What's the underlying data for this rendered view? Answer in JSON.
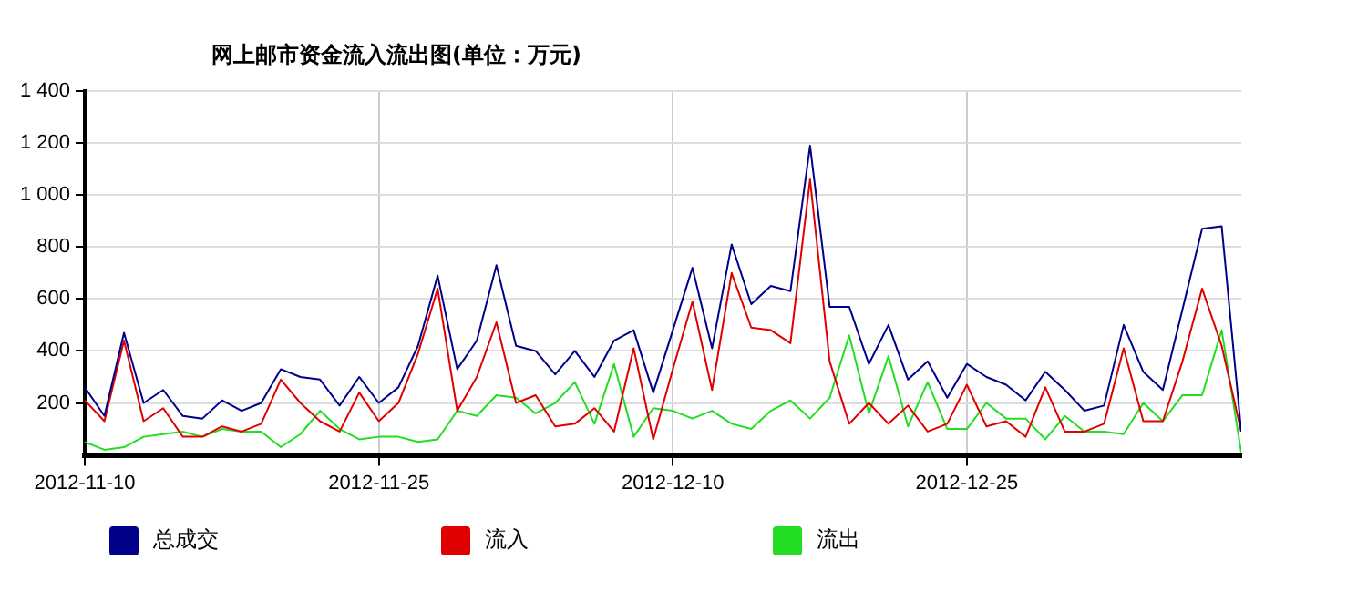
{
  "chart_data": {
    "type": "line",
    "title": "网上邮市资金流入流出图(单位：万元)",
    "x": [
      "2012-11-10",
      "2012-11-11",
      "2012-11-12",
      "2012-11-13",
      "2012-11-14",
      "2012-11-15",
      "2012-11-16",
      "2012-11-17",
      "2012-11-18",
      "2012-11-19",
      "2012-11-20",
      "2012-11-21",
      "2012-11-22",
      "2012-11-23",
      "2012-11-24",
      "2012-11-25",
      "2012-11-26",
      "2012-11-27",
      "2012-11-28",
      "2012-11-29",
      "2012-11-30",
      "2012-12-01",
      "2012-12-02",
      "2012-12-03",
      "2012-12-04",
      "2012-12-05",
      "2012-12-06",
      "2012-12-07",
      "2012-12-08",
      "2012-12-09",
      "2012-12-10",
      "2012-12-11",
      "2012-12-12",
      "2012-12-13",
      "2012-12-14",
      "2012-12-15",
      "2012-12-16",
      "2012-12-17",
      "2012-12-18",
      "2012-12-19",
      "2012-12-20",
      "2012-12-21",
      "2012-12-22",
      "2012-12-23",
      "2012-12-24",
      "2012-12-25",
      "2012-12-26",
      "2012-12-27",
      "2012-12-28",
      "2012-12-29",
      "2012-12-30",
      "2012-12-31",
      "2013-01-01",
      "2013-01-02",
      "2013-01-03",
      "2013-01-04",
      "2013-01-05",
      "2013-01-06",
      "2013-01-07",
      "2013-01-08"
    ],
    "series": [
      {
        "name": "总成交",
        "color": "#00008b",
        "values": [
          260,
          150,
          470,
          200,
          250,
          150,
          140,
          210,
          170,
          200,
          330,
          300,
          290,
          190,
          300,
          200,
          260,
          420,
          690,
          330,
          440,
          730,
          420,
          400,
          310,
          400,
          300,
          440,
          480,
          240,
          480,
          720,
          410,
          810,
          580,
          650,
          630,
          1190,
          570,
          570,
          350,
          500,
          290,
          360,
          220,
          350,
          300,
          270,
          210,
          320,
          250,
          170,
          190,
          500,
          320,
          250,
          560,
          870,
          880,
          90
        ]
      },
      {
        "name": "流入",
        "color": "#e00000",
        "values": [
          210,
          130,
          440,
          130,
          180,
          70,
          70,
          110,
          90,
          120,
          290,
          200,
          130,
          90,
          240,
          130,
          200,
          390,
          640,
          170,
          300,
          510,
          200,
          230,
          110,
          120,
          180,
          90,
          410,
          60,
          330,
          590,
          250,
          700,
          490,
          480,
          430,
          1060,
          360,
          120,
          200,
          120,
          190,
          90,
          120,
          270,
          110,
          130,
          70,
          260,
          90,
          90,
          120,
          410,
          130,
          130,
          360,
          640,
          420,
          90
        ]
      },
      {
        "name": "流出",
        "color": "#22dd22",
        "values": [
          50,
          20,
          30,
          70,
          80,
          90,
          70,
          100,
          90,
          90,
          30,
          80,
          170,
          100,
          60,
          70,
          70,
          50,
          60,
          170,
          150,
          230,
          220,
          160,
          200,
          280,
          120,
          350,
          70,
          180,
          170,
          140,
          170,
          120,
          100,
          170,
          210,
          140,
          220,
          460,
          160,
          380,
          110,
          280,
          100,
          100,
          200,
          140,
          140,
          60,
          150,
          90,
          90,
          80,
          200,
          130,
          230,
          230,
          480,
          10
        ]
      }
    ],
    "xlim": [
      "2012-11-10",
      "2013-01-08"
    ],
    "xticks": [
      "2012-11-10",
      "2012-11-25",
      "2012-12-10",
      "2012-12-25"
    ],
    "ylim": [
      0,
      1400
    ],
    "yticks": [
      200,
      400,
      600,
      800,
      {
        "value": 1000,
        "label": "1 000"
      },
      {
        "value": 1200,
        "label": "1 200"
      },
      {
        "value": 1400,
        "label": "1 400"
      }
    ],
    "grid": true,
    "legend": "bottom left",
    "marker": "none",
    "line_style": "solid"
  }
}
